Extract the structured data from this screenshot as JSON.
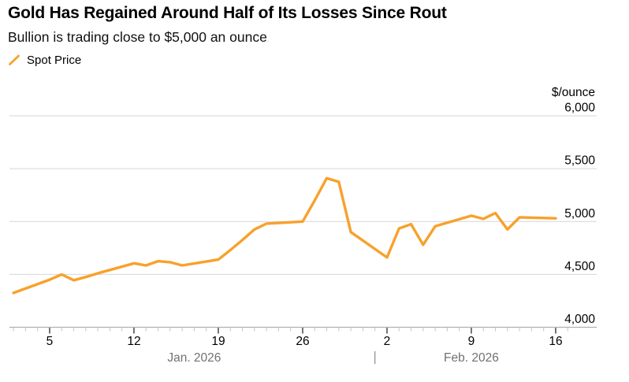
{
  "header": {
    "title": "Gold Has Regained Around Half of Its Losses Since Rout",
    "subtitle": "Bullion is trading close to $5,000 an ounce"
  },
  "legend": {
    "label": "Spot Price",
    "marker": "slash-icon"
  },
  "colors": {
    "accent_orange": "#F7A12B",
    "gridline": "#D6D6D6",
    "axis_line": "#B0B0B0",
    "minor_tick": "#C4C4C4",
    "major_tick": "#3A3A3A",
    "axis_text": "#000000",
    "month_text": "#717171",
    "background": "#FFFFFF"
  },
  "chart_data": {
    "type": "line",
    "title": "Gold Has Regained Around Half of Its Losses Since Rout",
    "subtitle": "Bullion is trading close to $5,000 an ounce",
    "legend_position": "top-left",
    "grid": true,
    "y_axis": {
      "unit_label": "$/ounce",
      "ylim": [
        4000,
        6000
      ],
      "ticks": [
        4000,
        4500,
        5000,
        5500,
        6000
      ],
      "tick_labels": [
        "4,000",
        "4,500",
        "5,000",
        "5,500",
        "6,000"
      ]
    },
    "x_axis": {
      "start_date": "Jan 2",
      "end_date": "Feb 17",
      "minor_tick_interval": "daily",
      "major_ticks": [
        {
          "date": "Jan 5",
          "label": "5"
        },
        {
          "date": "Jan 12",
          "label": "12"
        },
        {
          "date": "Jan 19",
          "label": "19"
        },
        {
          "date": "Jan 26",
          "label": "26"
        },
        {
          "date": "Feb 2",
          "label": "2"
        },
        {
          "date": "Feb 9",
          "label": "9"
        },
        {
          "date": "Feb 16",
          "label": "16"
        }
      ],
      "month_labels": [
        {
          "label": "Jan. 2026",
          "center_date": "Jan 17"
        },
        {
          "label": "Feb. 2026",
          "center_date": "Feb 9"
        }
      ],
      "month_separator_date": "Feb 1"
    },
    "series": [
      {
        "name": "Spot Price",
        "color": "#F7A12B",
        "points": [
          {
            "date": "Jan 2",
            "value": 4325
          },
          {
            "date": "Jan 5",
            "value": 4450
          },
          {
            "date": "Jan 6",
            "value": 4500
          },
          {
            "date": "Jan 7",
            "value": 4445
          },
          {
            "date": "Jan 8",
            "value": 4475
          },
          {
            "date": "Jan 9",
            "value": 4510
          },
          {
            "date": "Jan 12",
            "value": 4605
          },
          {
            "date": "Jan 13",
            "value": 4585
          },
          {
            "date": "Jan 14",
            "value": 4625
          },
          {
            "date": "Jan 15",
            "value": 4615
          },
          {
            "date": "Jan 16",
            "value": 4585
          },
          {
            "date": "Jan 19",
            "value": 4640
          },
          {
            "date": "Jan 20",
            "value": 4730
          },
          {
            "date": "Jan 21",
            "value": 4825
          },
          {
            "date": "Jan 22",
            "value": 4925
          },
          {
            "date": "Jan 23",
            "value": 4980
          },
          {
            "date": "Jan 26",
            "value": 5000
          },
          {
            "date": "Jan 27",
            "value": 5200
          },
          {
            "date": "Jan 28",
            "value": 5410
          },
          {
            "date": "Jan 29",
            "value": 5375
          },
          {
            "date": "Jan 30",
            "value": 4900
          },
          {
            "date": "Feb 2",
            "value": 4660
          },
          {
            "date": "Feb 3",
            "value": 4935
          },
          {
            "date": "Feb 4",
            "value": 4975
          },
          {
            "date": "Feb 5",
            "value": 4780
          },
          {
            "date": "Feb 6",
            "value": 4955
          },
          {
            "date": "Feb 9",
            "value": 5055
          },
          {
            "date": "Feb 10",
            "value": 5025
          },
          {
            "date": "Feb 11",
            "value": 5080
          },
          {
            "date": "Feb 12",
            "value": 4925
          },
          {
            "date": "Feb 13",
            "value": 5040
          },
          {
            "date": "Feb 16",
            "value": 5030
          }
        ]
      }
    ]
  }
}
